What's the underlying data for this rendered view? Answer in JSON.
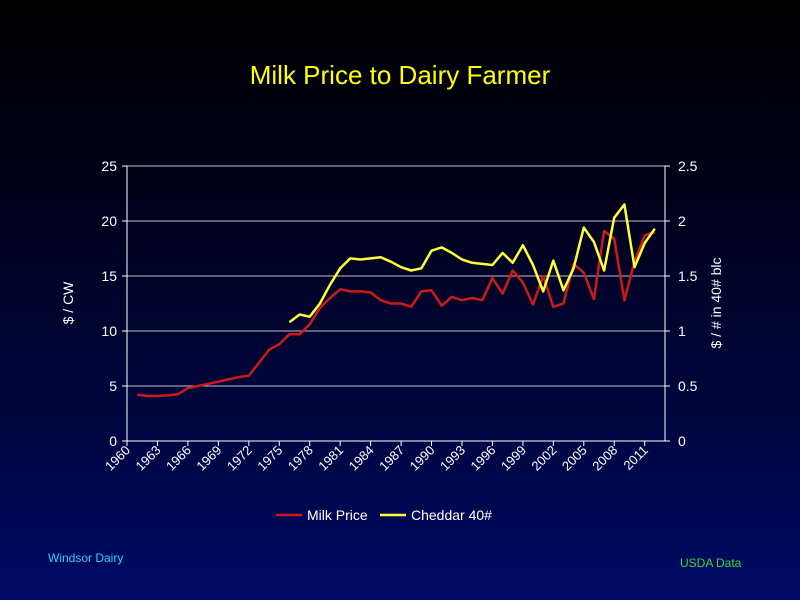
{
  "slide": {
    "title": "Milk Price to Dairy Farmer",
    "footer_left": "Windsor  Dairy",
    "footer_right": "USDA  Data"
  },
  "colors": {
    "milk": "#cc1a1a",
    "cheddar": "#ffff33",
    "axis_text": "#ffffff",
    "grid": "#ffffff"
  },
  "chart_data": {
    "type": "line",
    "title": "Milk Price to Dairy Farmer",
    "x_ticks": [
      "1960",
      "1963",
      "1966",
      "1969",
      "1972",
      "1975",
      "1978",
      "1981",
      "1984",
      "1987",
      "1990",
      "1993",
      "1996",
      "1999",
      "2002",
      "2005",
      "2008",
      "2011"
    ],
    "xlim": [
      1960,
      2013
    ],
    "ylabel": "$ / CW",
    "ylim": [
      0,
      25
    ],
    "y_ticks": [
      "0",
      "5",
      "10",
      "15",
      "20",
      "25"
    ],
    "y2label": "$ / # in 40# blc",
    "y2lim": [
      0,
      2.5
    ],
    "y2_ticks": [
      "0",
      "0.5",
      "1",
      "1.5",
      "2",
      "2.5"
    ],
    "grid": true,
    "legend_position": "bottom",
    "series": [
      {
        "name": "Milk Price",
        "axis": "left",
        "x": [
          1961,
          1962,
          1963,
          1964,
          1965,
          1966,
          1967,
          1968,
          1969,
          1970,
          1971,
          1972,
          1973,
          1974,
          1975,
          1976,
          1977,
          1978,
          1979,
          1980,
          1981,
          1982,
          1983,
          1984,
          1985,
          1986,
          1987,
          1988,
          1989,
          1990,
          1991,
          1992,
          1993,
          1994,
          1995,
          1996,
          1997,
          1998,
          1999,
          2000,
          2001,
          2002,
          2003,
          2004,
          2005,
          2006,
          2007,
          2008,
          2009,
          2010,
          2011,
          2012
        ],
        "values": [
          4.2,
          4.1,
          4.1,
          4.15,
          4.25,
          4.8,
          5.0,
          5.2,
          5.4,
          5.6,
          5.8,
          5.95,
          7.1,
          8.3,
          8.8,
          9.7,
          9.7,
          10.6,
          12.1,
          13.0,
          13.8,
          13.6,
          13.6,
          13.5,
          12.8,
          12.5,
          12.5,
          12.2,
          13.6,
          13.7,
          12.3,
          13.1,
          12.8,
          13.0,
          12.8,
          14.8,
          13.4,
          15.5,
          14.4,
          12.4,
          15.0,
          12.2,
          12.5,
          16.1,
          15.3,
          12.9,
          19.1,
          18.4,
          12.8,
          16.3,
          18.7,
          19.0
        ]
      },
      {
        "name": "Cheddar 40#",
        "axis": "right",
        "x": [
          1976,
          1977,
          1978,
          1979,
          1980,
          1981,
          1982,
          1983,
          1984,
          1985,
          1986,
          1987,
          1988,
          1989,
          1990,
          1991,
          1992,
          1993,
          1994,
          1995,
          1996,
          1997,
          1998,
          1999,
          2000,
          2001,
          2002,
          2003,
          2004,
          2005,
          2006,
          2007,
          2008,
          2009,
          2010,
          2011,
          2012
        ],
        "values": [
          1.08,
          1.15,
          1.13,
          1.25,
          1.42,
          1.57,
          1.66,
          1.65,
          1.66,
          1.67,
          1.63,
          1.58,
          1.55,
          1.57,
          1.73,
          1.76,
          1.71,
          1.65,
          1.62,
          1.61,
          1.6,
          1.71,
          1.62,
          1.78,
          1.6,
          1.36,
          1.64,
          1.37,
          1.57,
          1.94,
          1.81,
          1.55,
          2.03,
          2.15,
          1.58,
          1.8,
          1.93
        ]
      }
    ]
  }
}
